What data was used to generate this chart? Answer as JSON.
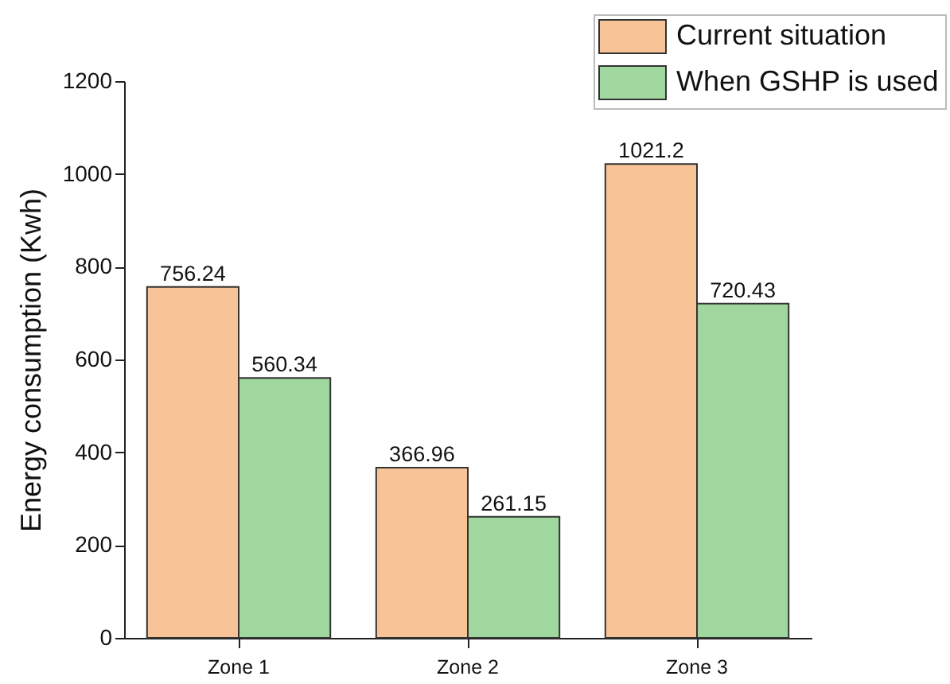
{
  "chart_data": {
    "type": "bar",
    "ylabel": "Energy consumption (Kwh)",
    "categories": [
      "Zone 1",
      "Zone 2",
      "Zone 3"
    ],
    "series": [
      {
        "name": "Current situation",
        "color": "#f8c497",
        "values": [
          756.24,
          366.96,
          1021.2
        ]
      },
      {
        "name": "When GSHP is used",
        "color": "#9fd79e",
        "values": [
          560.34,
          261.15,
          720.43
        ]
      }
    ],
    "ylim": [
      0,
      1200
    ],
    "yticks": [
      0,
      200,
      400,
      600,
      800,
      1000,
      1200
    ],
    "grid": false,
    "legend": "top right",
    "data_labels": true
  }
}
